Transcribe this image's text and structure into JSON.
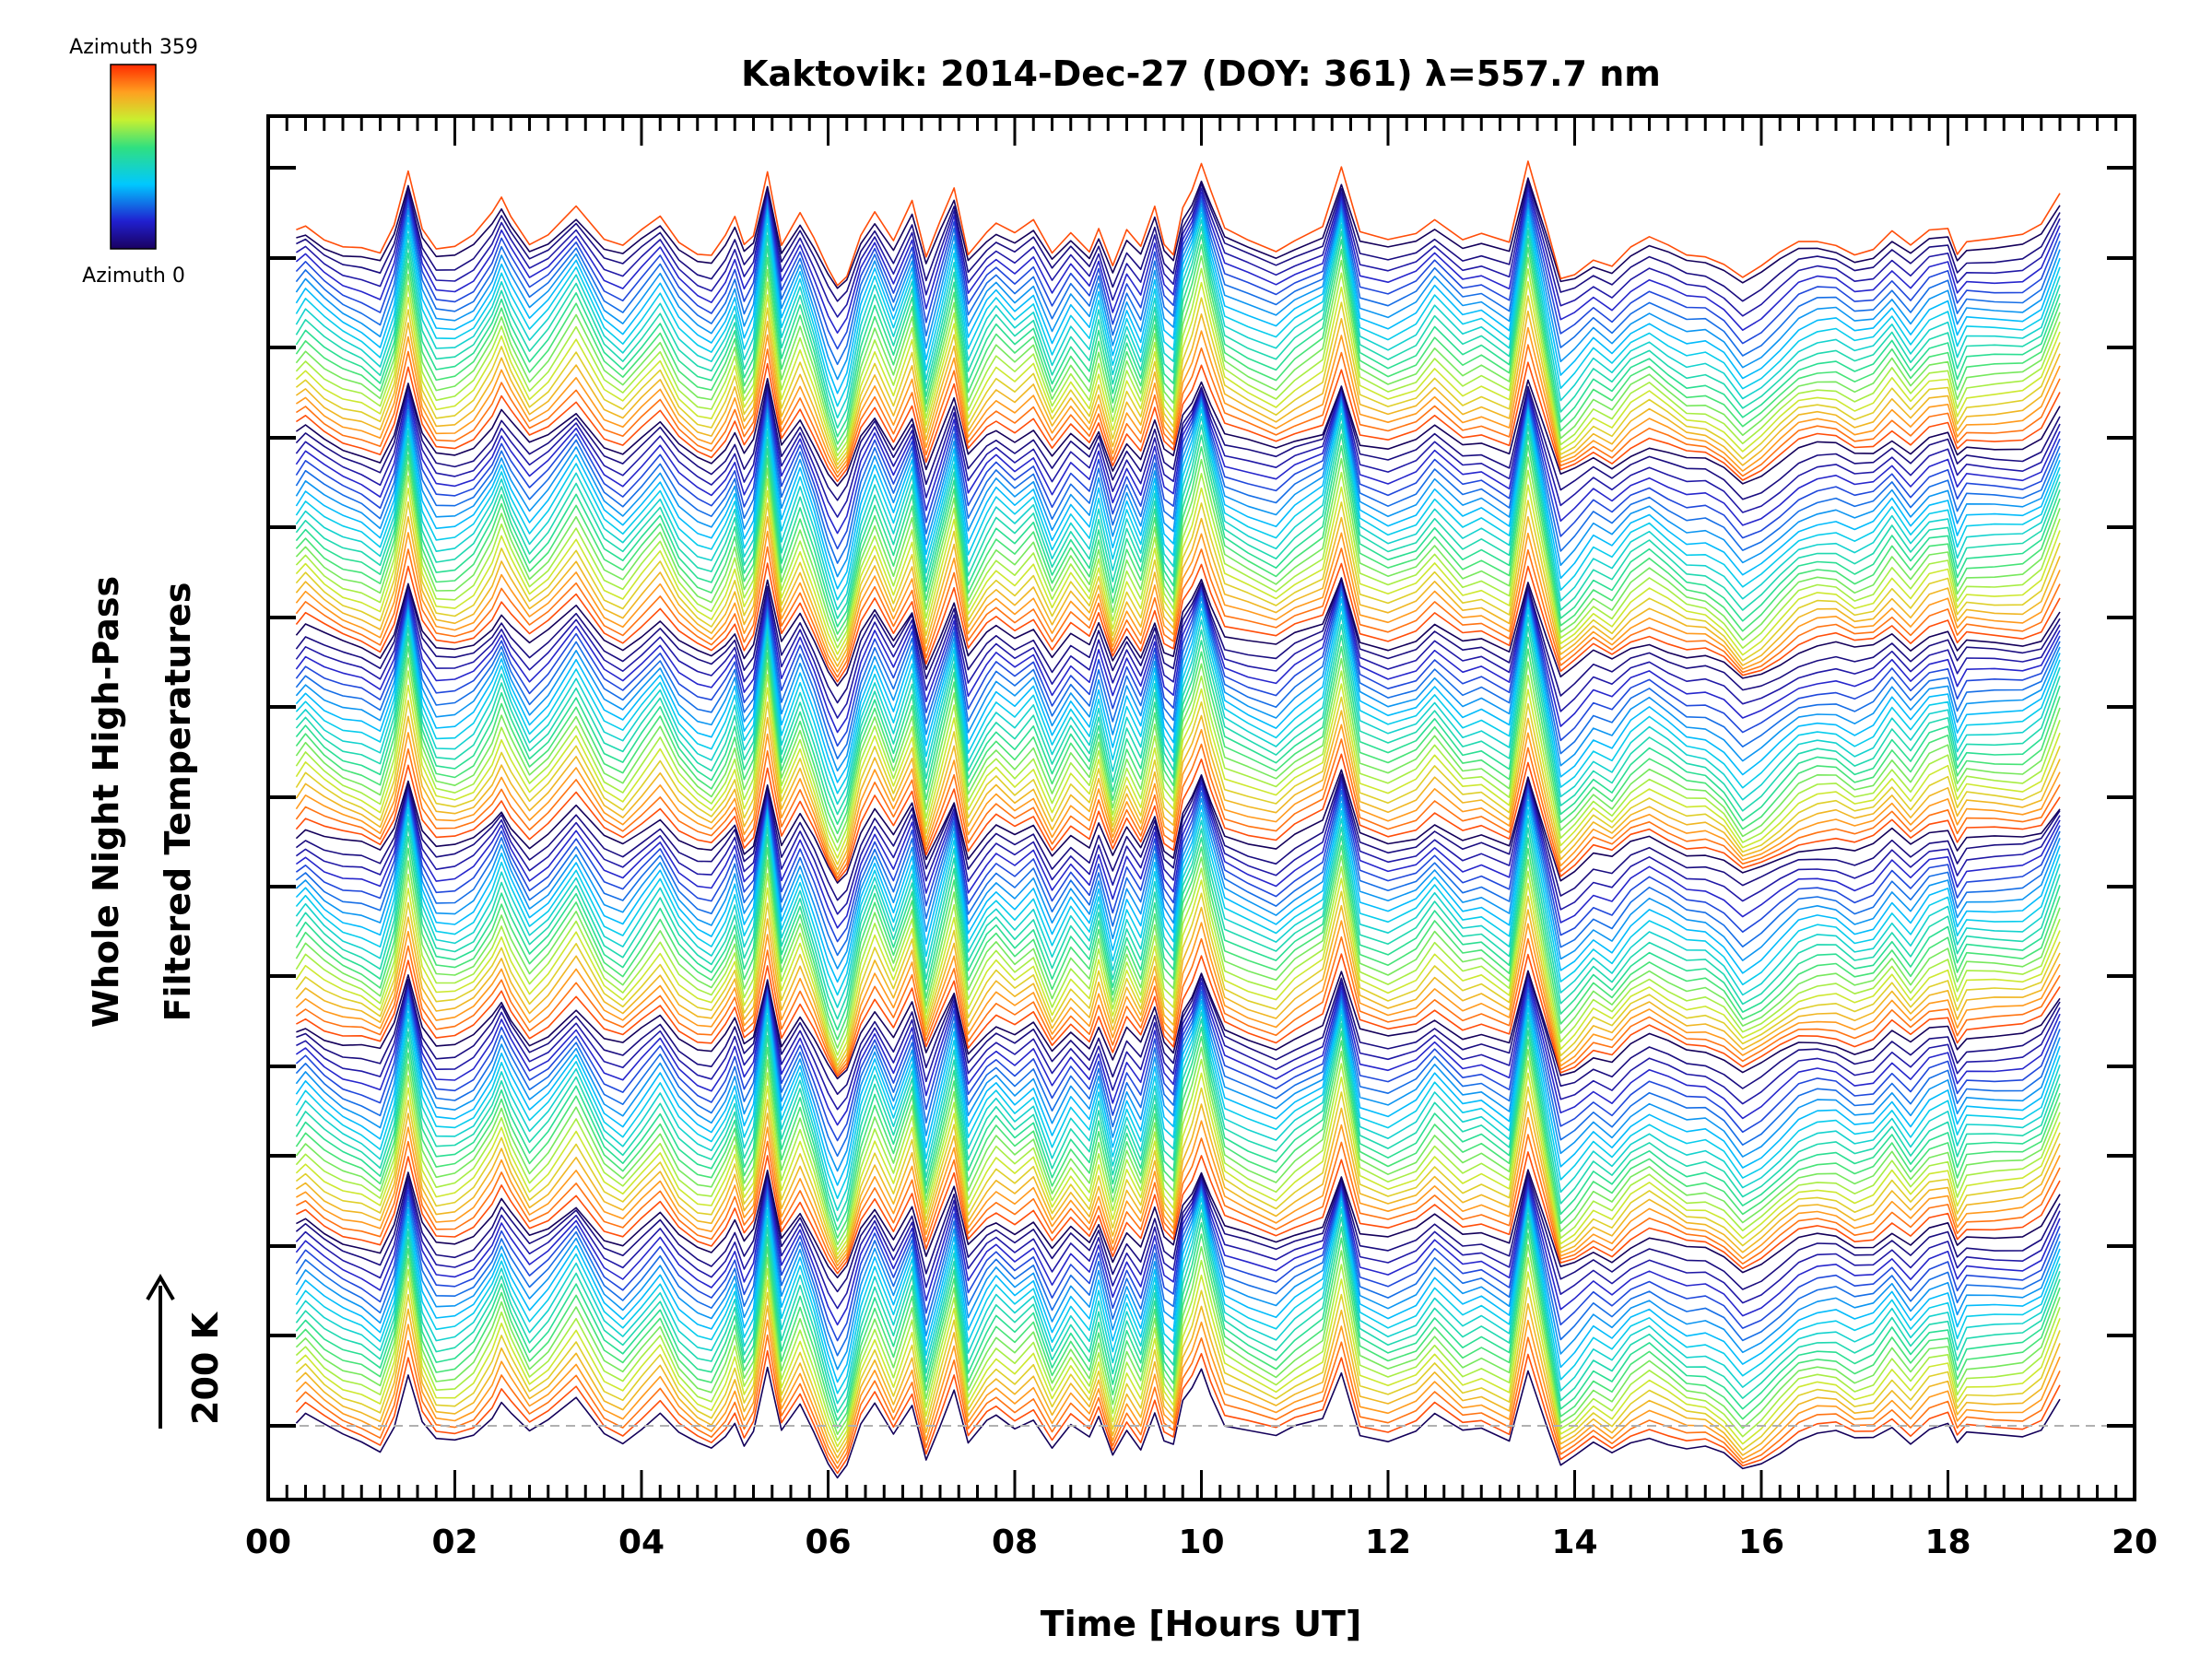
{
  "chart_data": {
    "type": "line",
    "title": "Kaktovik: 2014-Dec-27 (DOY: 361) λ=557.7 nm",
    "xlabel": "Time [Hours UT]",
    "ylabel_line1": "Whole Night High-Pass",
    "ylabel_line2": "Filtered Temperatures",
    "scale_label": "200 K",
    "xlim": [
      0,
      20
    ],
    "xticks": [
      "00",
      "02",
      "04",
      "06",
      "08",
      "10",
      "12",
      "14",
      "16",
      "18",
      "20"
    ],
    "colorbar": {
      "top_label": "Azimuth 359",
      "bottom_label": "Azimuth 0",
      "range": [
        0,
        359
      ]
    },
    "stacking": {
      "traces": 128,
      "azimuth_sweeps": 6,
      "units": "K",
      "note": "Stacked high-pass filtered temperature traces, one per azimuth; colour encodes azimuth; baseline dashed grey."
    },
    "series": [
      {
        "name": "base trace (Azimuth 0)",
        "x": [
          0.3,
          0.4,
          0.6,
          0.8,
          1.0,
          1.2,
          1.35,
          1.5,
          1.65,
          1.8,
          2.0,
          2.2,
          2.4,
          2.5,
          2.6,
          2.8,
          3.0,
          3.3,
          3.6,
          3.8,
          4.0,
          4.2,
          4.4,
          4.6,
          4.75,
          4.9,
          5.0,
          5.1,
          5.2,
          5.35,
          5.5,
          5.7,
          5.85,
          6.0,
          6.1,
          6.2,
          6.35,
          6.5,
          6.7,
          6.9,
          7.05,
          7.2,
          7.35,
          7.5,
          7.7,
          7.8,
          8.0,
          8.2,
          8.4,
          8.6,
          8.8,
          8.9,
          9.05,
          9.2,
          9.35,
          9.5,
          9.6,
          9.7,
          9.8,
          9.9,
          10.0,
          10.1,
          10.25,
          10.5,
          10.8,
          11.0,
          11.3,
          11.5,
          11.7,
          12.0,
          12.3,
          12.5,
          12.8,
          13.0,
          13.3,
          13.5,
          13.7,
          13.85,
          14.0,
          14.2,
          14.4,
          14.6,
          14.8,
          15.0,
          15.2,
          15.4,
          15.6,
          15.8,
          16.0,
          16.2,
          16.4,
          16.6,
          16.8,
          17.0,
          17.2,
          17.4,
          17.6,
          17.8,
          18.0,
          18.1,
          18.2,
          18.5,
          18.8,
          19.0,
          19.2
        ],
        "y": [
          0,
          20,
          -10,
          -30,
          -40,
          -60,
          10,
          150,
          10,
          -40,
          -40,
          -20,
          30,
          70,
          30,
          -30,
          0,
          70,
          -20,
          -40,
          0,
          40,
          -20,
          -50,
          -60,
          -20,
          20,
          -50,
          -20,
          150,
          -30,
          50,
          -20,
          -100,
          -140,
          -110,
          0,
          60,
          -20,
          70,
          -80,
          10,
          100,
          -60,
          0,
          20,
          -10,
          20,
          -60,
          0,
          -40,
          20,
          -80,
          0,
          -50,
          50,
          -40,
          -60,
          60,
          100,
          160,
          90,
          0,
          -20,
          -40,
          -10,
          20,
          160,
          -10,
          -30,
          -10,
          30,
          -20,
          -10,
          -40,
          160,
          0,
          -120,
          -100,
          -60,
          -80,
          -40,
          -20,
          -40,
          -60,
          -60,
          -80,
          -120,
          -100,
          -70,
          -40,
          -30,
          -30,
          -50,
          -40,
          0,
          -40,
          0,
          10,
          -50,
          -20,
          -20,
          -20,
          0,
          80
        ]
      }
    ]
  }
}
